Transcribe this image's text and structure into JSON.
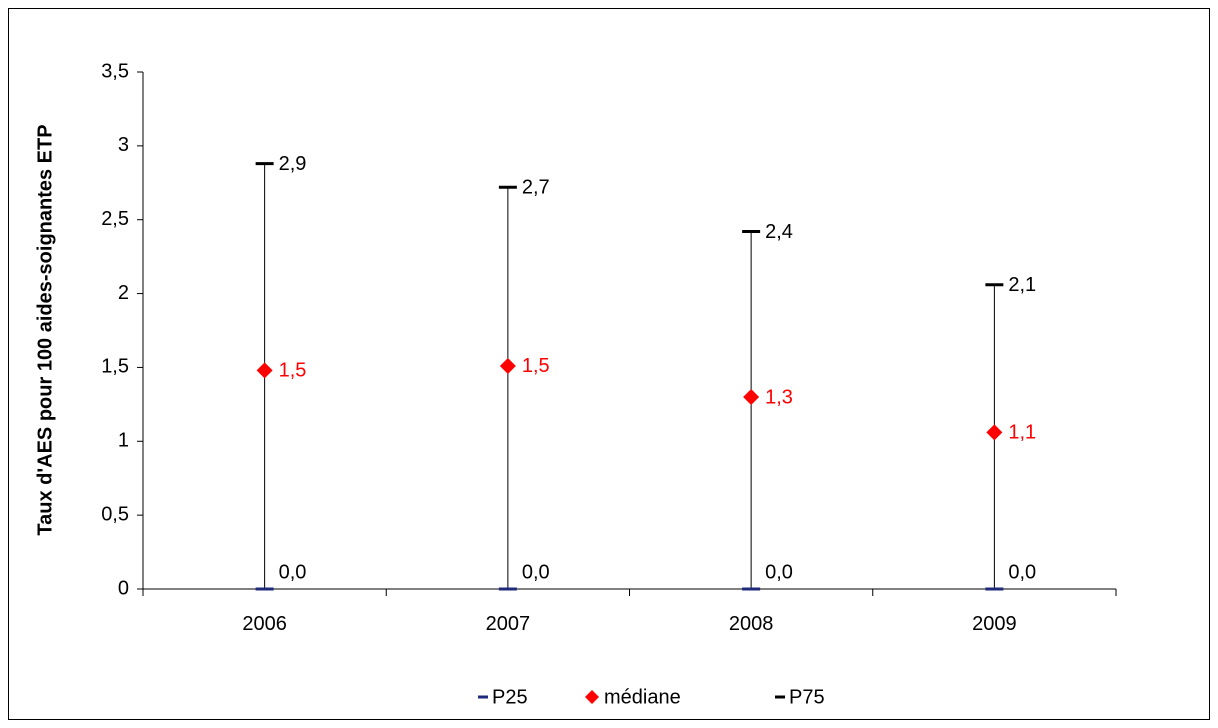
{
  "chart_data": {
    "type": "scatter",
    "title": "",
    "xlabel": "",
    "ylabel": "Taux d'AES pour 100 aides-soignantes ETP",
    "categories": [
      "2006",
      "2007",
      "2008",
      "2009"
    ],
    "ylim": [
      0,
      3.5
    ],
    "yticks": [
      0,
      0.5,
      1,
      1.5,
      2,
      2.5,
      3,
      3.5
    ],
    "ytick_labels": [
      "0",
      "0,5",
      "1",
      "1,5",
      "2",
      "2,5",
      "3",
      "3,5"
    ],
    "grid": false,
    "legend_position": "bottom",
    "series": [
      {
        "name": "P25",
        "marker": "dash",
        "color": "#1f2a7a",
        "values": [
          0.0,
          0.0,
          0.0,
          0.0
        ],
        "labels": [
          "0,0",
          "0,0",
          "0,0",
          "0,0"
        ],
        "label_color": "#000000"
      },
      {
        "name": "médiane",
        "marker": "diamond",
        "color": "#ff0000",
        "values": [
          1.48,
          1.51,
          1.3,
          1.06
        ],
        "labels": [
          "1,5",
          "1,5",
          "1,3",
          "1,1"
        ],
        "label_color": "#ff0000"
      },
      {
        "name": "P75",
        "marker": "dash",
        "color": "#000000",
        "values": [
          2.88,
          2.72,
          2.42,
          2.06
        ],
        "labels": [
          "2,9",
          "2,7",
          "2,4",
          "2,1"
        ],
        "label_color": "#000000"
      }
    ],
    "range_lines": {
      "from_series": "P25",
      "to_series": "P75",
      "color": "#000000"
    }
  }
}
